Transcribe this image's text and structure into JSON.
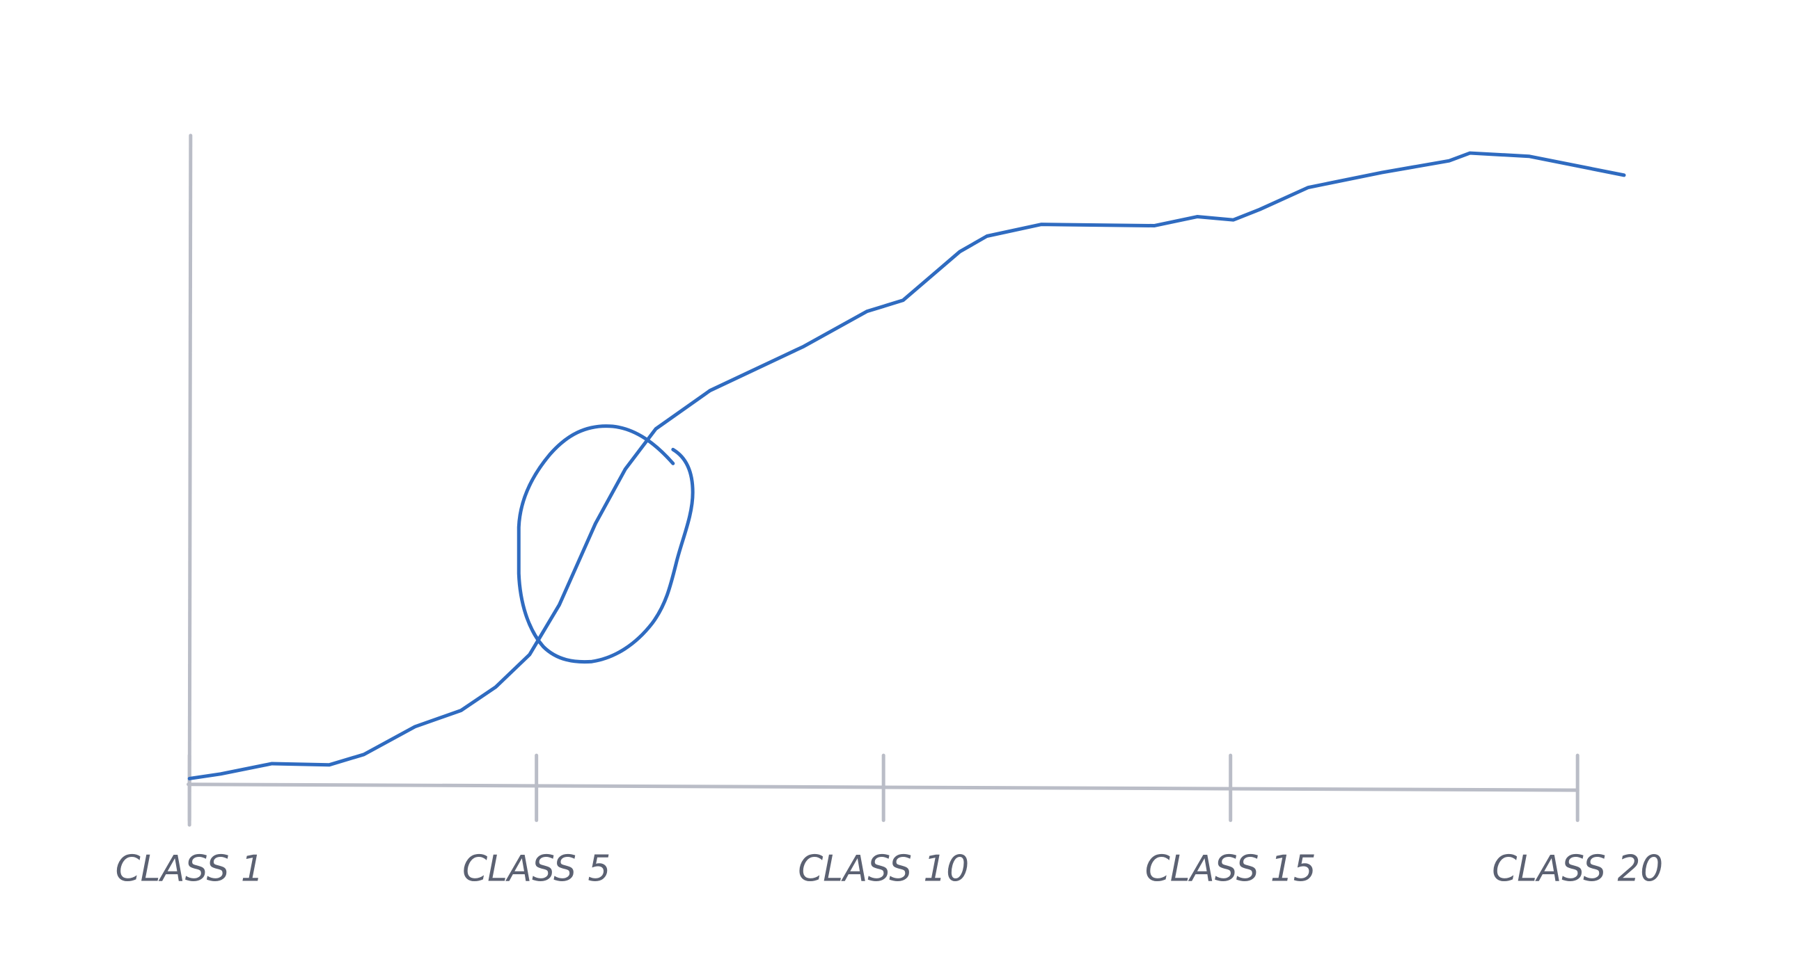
{
  "chart_data": {
    "type": "line",
    "x": [
      1,
      1.36,
      1.95,
      2.61,
      3.01,
      3.6,
      4.13,
      4.53,
      4.92,
      5.33,
      5.85,
      6.28,
      6.72,
      7.5,
      8.85,
      9.76,
      10.28,
      11.1,
      11.49,
      12.27,
      13.9,
      14.52,
      15.04,
      15.42,
      16.12,
      17.18,
      18.15,
      18.45,
      19.3,
      20.67
    ],
    "series": [
      {
        "color": "#2f6bc0",
        "values": [
          0.9,
          1.6,
          3.2,
          3.0,
          4.6,
          8.9,
          11.4,
          15.0,
          20.0,
          27.7,
          40.2,
          48.6,
          54.8,
          60.7,
          67.5,
          72.9,
          74.6,
          82.1,
          84.5,
          86.3,
          86.1,
          87.5,
          87.0,
          88.6,
          92.0,
          94.3,
          96.1,
          97.3,
          96.8,
          93.9
        ]
      }
    ],
    "xlim": [
      1,
      20
    ],
    "xticks": [
      {
        "value": 1,
        "label": "CLASS 1"
      },
      {
        "value": 5,
        "label": "CLASS 5"
      },
      {
        "value": 10,
        "label": "CLASS 10"
      },
      {
        "value": 15,
        "label": "CLASS 15"
      },
      {
        "value": 20,
        "label": "CLASS 20"
      }
    ],
    "ylim": [
      0,
      100
    ]
  }
}
